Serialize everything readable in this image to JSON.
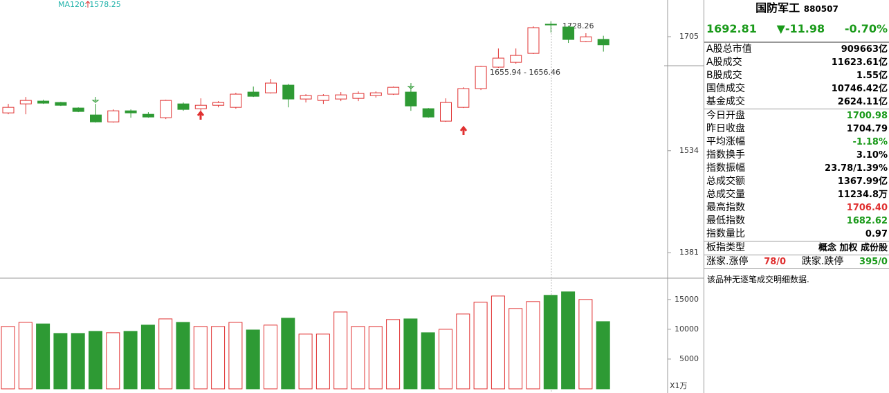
{
  "chart_data": [
    {
      "type": "candlestick",
      "legend": "MA120: 1578.25",
      "legend_color": "#20b2aa",
      "annotations": [
        "1728.26",
        "1655.94 - 1656.46"
      ],
      "ylim": [
        1347,
        1760
      ],
      "yticks": [
        1705,
        1534,
        1381
      ],
      "up_color": "#e03030",
      "down_color": "#2e9a34",
      "open": [
        1590.7,
        1604.2,
        1608.4,
        1606.3,
        1598,
        1587.6,
        1577.2,
        1593.8,
        1588.6,
        1583.5,
        1604.2,
        1597,
        1602.1,
        1599,
        1621.9,
        1620.8,
        1632.3,
        1611.5,
        1609.4,
        1611.5,
        1612.5,
        1616.7,
        1618.8,
        1621.9,
        1597,
        1578.3,
        1599,
        1627.1,
        1659.3,
        1666.5,
        1680,
        1723.7,
        1719.5,
        1697.7,
        1700.98
      ],
      "high": [
        1604.2,
        1614.6,
        1610.4,
        1607.3,
        1599,
        1604.2,
        1595.9,
        1595.9,
        1591.8,
        1610.4,
        1606.3,
        1612.5,
        1608.4,
        1620.8,
        1630.2,
        1641.6,
        1634.3,
        1618.8,
        1618.8,
        1621.9,
        1622.9,
        1622.9,
        1630.2,
        1633.3,
        1598,
        1612.5,
        1629.1,
        1661.3,
        1687.3,
        1687.3,
        1720.5,
        1728.26,
        1721.6,
        1710.2,
        1706.4
      ],
      "low": [
        1588.6,
        1588.6,
        1604.2,
        1601.1,
        1591.8,
        1576.2,
        1576.2,
        1583.5,
        1583.5,
        1581.4,
        1593.8,
        1593.8,
        1599,
        1597,
        1614.6,
        1619.8,
        1599,
        1606.3,
        1604.2,
        1608.4,
        1608.4,
        1613.6,
        1617.7,
        1593.8,
        1583.5,
        1577.2,
        1598,
        1625,
        1658.2,
        1664.5,
        1679,
        1711.2,
        1695.6,
        1696.7,
        1682.62
      ],
      "close": [
        1599,
        1609.4,
        1605.3,
        1602.1,
        1592.8,
        1577.2,
        1593.8,
        1590.7,
        1584.5,
        1609.4,
        1595.9,
        1602.1,
        1606.3,
        1618.8,
        1615.6,
        1635.4,
        1611.5,
        1616.7,
        1616.7,
        1617.7,
        1619.8,
        1620.8,
        1629.1,
        1601.1,
        1584.5,
        1606.3,
        1627.1,
        1660.3,
        1672.8,
        1676.9,
        1718.5,
        1722.6,
        1700.8,
        1704.79,
        1692.81
      ]
    },
    {
      "type": "bar",
      "unit": "X1万",
      "ylim": [
        0,
        18000
      ],
      "yticks": [
        15000,
        10000,
        5000
      ],
      "values": [
        10465,
        11163,
        10900,
        9300,
        9300,
        9650,
        9420,
        9650,
        10700,
        11740,
        11160,
        10465,
        10465,
        11160,
        9880,
        10700,
        11860,
        9190,
        9190,
        12900,
        10465,
        10465,
        11630,
        11740,
        9420,
        10000,
        12560,
        14535,
        15580,
        13490,
        14650,
        15700,
        16280,
        15000,
        11280
      ]
    }
  ],
  "panel": {
    "name": "国防军工",
    "code": "880507",
    "price": "1692.81",
    "change": "▼-11.98",
    "pct": "-0.70%",
    "rows": [
      [
        "A股总市值",
        "909663亿",
        ""
      ],
      [
        "A股成交",
        "11623.61亿",
        ""
      ],
      [
        "B股成交",
        "1.55亿",
        ""
      ],
      [
        "国债成交",
        "10746.42亿",
        ""
      ],
      [
        "基金成交",
        "2624.11亿",
        ""
      ],
      [
        "今日开盘",
        "1700.98",
        "#1a9a1a"
      ],
      [
        "昨日收盘",
        "1704.79",
        ""
      ],
      [
        "平均涨幅",
        "-1.18%",
        "#1a9a1a"
      ],
      [
        "指数换手",
        "3.10%",
        ""
      ],
      [
        "指数振幅",
        "23.78/1.39%",
        ""
      ],
      [
        "总成交额",
        "1367.99亿",
        ""
      ],
      [
        "总成交量",
        "11234.8万",
        ""
      ],
      [
        "最高指数",
        "1706.40",
        "#e03030"
      ],
      [
        "最低指数",
        "1682.62",
        "#1a9a1a"
      ],
      [
        "指数量比",
        "0.97",
        ""
      ],
      [
        "板指类型",
        "概念 加权 成份股",
        ""
      ]
    ],
    "up_label": "涨家.涨停",
    "up_value": "78/0",
    "down_label": "跌家.跌停",
    "down_value": "395/0",
    "note": "该品种无逐笔成交明细数据."
  }
}
